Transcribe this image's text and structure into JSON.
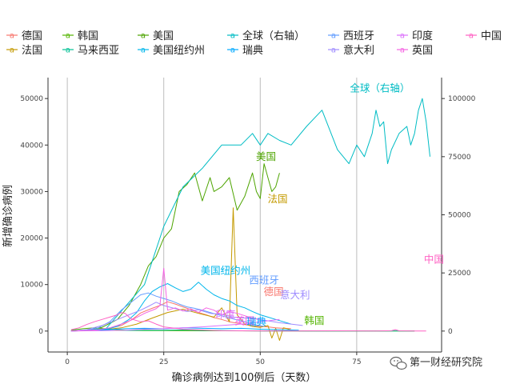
{
  "chart_data": {
    "type": "line",
    "title": "",
    "xlabel": "确诊病例达到100例后（天数）",
    "ylabel": "新增确诊病例",
    "xlim": [
      -5,
      97
    ],
    "ylim": [
      -4500,
      54500
    ],
    "y2lim": [
      -9000,
      109000
    ],
    "x_ticks": [
      0,
      25,
      50,
      75
    ],
    "y_ticks": [
      0,
      10000,
      20000,
      30000,
      40000,
      50000
    ],
    "y2_ticks": [
      0,
      25000,
      50000,
      75000,
      100000
    ],
    "x_tick_labels": [
      "0",
      "25",
      "50",
      "75"
    ],
    "y_tick_labels": [
      "0",
      "10000",
      "20000",
      "30000",
      "40000",
      "50000"
    ],
    "y2_tick_labels": [
      "0",
      "25000",
      "50000",
      "75000",
      "100000"
    ],
    "grid": "vertical",
    "legend_position": "top",
    "series": [
      {
        "name": "德国",
        "color": "#F8766D",
        "axis": "left",
        "x": [
          1,
          5,
          10,
          14,
          17,
          19,
          22,
          24,
          26,
          28,
          30,
          32,
          34,
          36,
          38,
          40,
          42,
          44,
          46,
          48,
          50,
          52,
          54,
          56,
          58
        ],
        "y": [
          30,
          120,
          400,
          1200,
          2600,
          3900,
          4900,
          5500,
          6300,
          5800,
          5200,
          4600,
          4000,
          3500,
          2900,
          2500,
          2000,
          1700,
          1400,
          1200,
          1000,
          900,
          700,
          600,
          500
        ]
      },
      {
        "name": "法国",
        "color": "#C49A00",
        "axis": "left",
        "x": [
          1,
          8,
          14,
          18,
          22,
          26,
          30,
          34,
          38,
          40,
          42,
          43,
          44,
          45,
          46,
          48,
          50,
          52,
          53,
          54,
          55,
          56,
          57,
          58
        ],
        "y": [
          40,
          150,
          700,
          1500,
          2800,
          4000,
          4700,
          3800,
          3000,
          5000,
          2000,
          26500,
          3500,
          2500,
          1500,
          1000,
          800,
          1200,
          -1500,
          600,
          -2000,
          700,
          500,
          200
        ]
      },
      {
        "name": "韩国",
        "color": "#53B400",
        "axis": "left",
        "x": [
          1,
          4,
          7,
          10,
          13,
          16,
          20,
          25,
          30,
          40,
          50,
          60,
          70,
          80,
          90
        ],
        "y": [
          200,
          500,
          700,
          500,
          300,
          150,
          100,
          100,
          80,
          60,
          40,
          30,
          30,
          20,
          20
        ]
      },
      {
        "name": "马来西亚",
        "color": "#00C094",
        "axis": "left",
        "x": [
          1,
          5,
          10,
          15,
          20,
          25,
          30,
          35,
          40,
          45,
          50,
          55,
          60,
          65,
          70,
          75,
          80,
          85,
          90
        ],
        "y": [
          20,
          100,
          200,
          150,
          180,
          200,
          250,
          150,
          100,
          60,
          40,
          30,
          20,
          15,
          15,
          10,
          10,
          10,
          10
        ]
      },
      {
        "name": "美国",
        "color": "#4DA400",
        "axis": "left",
        "x": [
          1,
          5,
          9,
          13,
          16,
          19,
          21,
          23,
          25,
          27,
          29,
          31,
          33,
          35,
          37,
          38,
          40,
          42,
          44,
          46,
          48,
          49,
          50,
          51,
          52,
          53,
          54,
          55
        ],
        "y": [
          50,
          200,
          800,
          2500,
          5500,
          10000,
          14000,
          16000,
          20000,
          22000,
          30000,
          31500,
          34000,
          28000,
          33000,
          30000,
          31000,
          33000,
          26000,
          29000,
          34000,
          30000,
          28500,
          36000,
          33000,
          30000,
          31000,
          34000
        ]
      },
      {
        "name": "美国纽约州",
        "color": "#00B6EB",
        "axis": "left",
        "x": [
          1,
          5,
          10,
          13,
          16,
          18,
          20,
          22,
          24,
          26,
          28,
          30,
          32,
          34,
          36,
          38,
          40,
          42,
          44,
          46,
          48,
          50,
          52,
          54,
          56,
          58
        ],
        "y": [
          30,
          100,
          400,
          1000,
          2500,
          4000,
          6500,
          8500,
          9500,
          10200,
          9300,
          8500,
          9000,
          10500,
          9000,
          7800,
          7000,
          6500,
          5500,
          5000,
          4200,
          3500,
          3000,
          2500,
          2000,
          1500
        ]
      },
      {
        "name": "全球（右轴）",
        "color": "#00BCC4",
        "axis": "right",
        "x": [
          1,
          10,
          20,
          25,
          30,
          35,
          40,
          45,
          48,
          50,
          52,
          55,
          58,
          62,
          66,
          70,
          73,
          75,
          77,
          79,
          80,
          81,
          82,
          83,
          84,
          86,
          88,
          89,
          90,
          91,
          92,
          93,
          94
        ],
        "y": [
          100,
          1000,
          20000,
          45000,
          62000,
          70000,
          80000,
          80000,
          85000,
          80000,
          85000,
          82000,
          80000,
          88000,
          95000,
          78000,
          72000,
          80000,
          75000,
          85000,
          95000,
          88000,
          90000,
          72000,
          78000,
          85000,
          88000,
          80000,
          85000,
          95000,
          100000,
          90000,
          75000
        ]
      },
      {
        "name": "瑞典",
        "color": "#00A9FF",
        "axis": "left",
        "x": [
          1,
          5,
          10,
          15,
          20,
          25,
          30,
          35,
          40,
          45,
          50,
          55,
          60
        ],
        "y": [
          50,
          100,
          300,
          500,
          600,
          500,
          700,
          600,
          500,
          600,
          400,
          300,
          200
        ]
      },
      {
        "name": "西班牙",
        "color": "#619CFF",
        "axis": "left",
        "x": [
          1,
          5,
          8,
          11,
          14,
          17,
          19,
          21,
          23,
          25,
          27,
          29,
          31,
          33,
          35,
          37,
          40,
          43,
          45,
          47,
          49,
          51
        ],
        "y": [
          20,
          150,
          700,
          2000,
          4500,
          6500,
          7800,
          8200,
          7500,
          7000,
          6500,
          5800,
          5200,
          4900,
          4500,
          4000,
          3300,
          2600,
          2200,
          1800,
          1300,
          1000
        ]
      },
      {
        "name": "意大利",
        "color": "#9F8CFF",
        "axis": "left",
        "x": [
          1,
          5,
          9,
          13,
          16,
          19,
          21,
          23,
          25,
          28,
          31,
          34,
          37,
          40,
          43,
          46,
          49,
          52,
          55,
          58,
          61
        ],
        "y": [
          30,
          300,
          1200,
          2500,
          3500,
          4500,
          5300,
          6200,
          5500,
          4800,
          4200,
          4600,
          3800,
          3600,
          3000,
          2800,
          2600,
          2200,
          1800,
          1500,
          1200
        ]
      },
      {
        "name": "印度",
        "color": "#DB72FB",
        "axis": "left",
        "x": [
          1,
          5,
          10,
          15,
          20,
          25,
          30,
          35,
          40,
          45,
          50,
          55
        ],
        "y": [
          20,
          50,
          100,
          200,
          400,
          500,
          700,
          900,
          1200,
          1500,
          2000,
          2500
        ]
      },
      {
        "name": "英国",
        "color": "#F564E3",
        "axis": "left",
        "x": [
          1,
          5,
          8,
          11,
          14,
          17,
          20,
          23,
          24,
          25,
          26,
          28,
          30,
          32,
          34,
          36,
          38,
          40,
          42,
          44,
          46,
          48,
          50
        ],
        "y": [
          20,
          100,
          300,
          700,
          1500,
          2500,
          3800,
          4800,
          5500,
          13500,
          4500,
          5000,
          4300,
          4800,
          4000,
          5000,
          4500,
          3500,
          4200,
          3800,
          3300,
          2800,
          2500
        ]
      },
      {
        "name": "中国",
        "color": "#FF61C3",
        "axis": "left",
        "x": [
          1,
          3,
          5,
          7,
          9,
          11,
          13,
          14,
          15,
          16,
          17,
          19,
          21,
          23,
          25,
          30,
          40,
          50,
          60,
          70,
          80,
          84,
          85,
          86,
          90,
          93
        ],
        "y": [
          300,
          700,
          1400,
          2000,
          2500,
          3000,
          3500,
          4000,
          3800,
          3000,
          2500,
          2000,
          2200,
          1500,
          900,
          400,
          80,
          40,
          30,
          50,
          30,
          80,
          300,
          60,
          30,
          20
        ]
      }
    ],
    "annotations": [
      {
        "text": "全球（右轴）",
        "series": "全球（右轴）",
        "x": 81,
        "y": 51500
      },
      {
        "text": "美国",
        "series": "美国",
        "x": 51.5,
        "y": 36800
      },
      {
        "text": "法国",
        "series": "法国",
        "x": 54.5,
        "y": 27700
      },
      {
        "text": "中国",
        "series": "中国",
        "x": 95,
        "y": 14700
      },
      {
        "text": "美国纽约州",
        "series": "美国纽约州",
        "x": 41,
        "y": 12300
      },
      {
        "text": "西班牙",
        "series": "西班牙",
        "x": 51,
        "y": 10200
      },
      {
        "text": "德国",
        "series": "德国",
        "x": 53.5,
        "y": 7700
      },
      {
        "text": "意大利",
        "series": "意大利",
        "x": 59,
        "y": 7000
      },
      {
        "text": "印度",
        "series": "印度",
        "x": 41,
        "y": 2800
      },
      {
        "text": "韩国",
        "series": "韩国",
        "x": 64,
        "y": 1500
      },
      {
        "text": "英国",
        "series": "英国",
        "x": 46,
        "y": 1400
      },
      {
        "text": "瑞典",
        "series": "瑞典",
        "x": 49,
        "y": 1300
      }
    ]
  },
  "watermark": {
    "text": "第一财经研究院",
    "icon": "wechat-icon"
  }
}
